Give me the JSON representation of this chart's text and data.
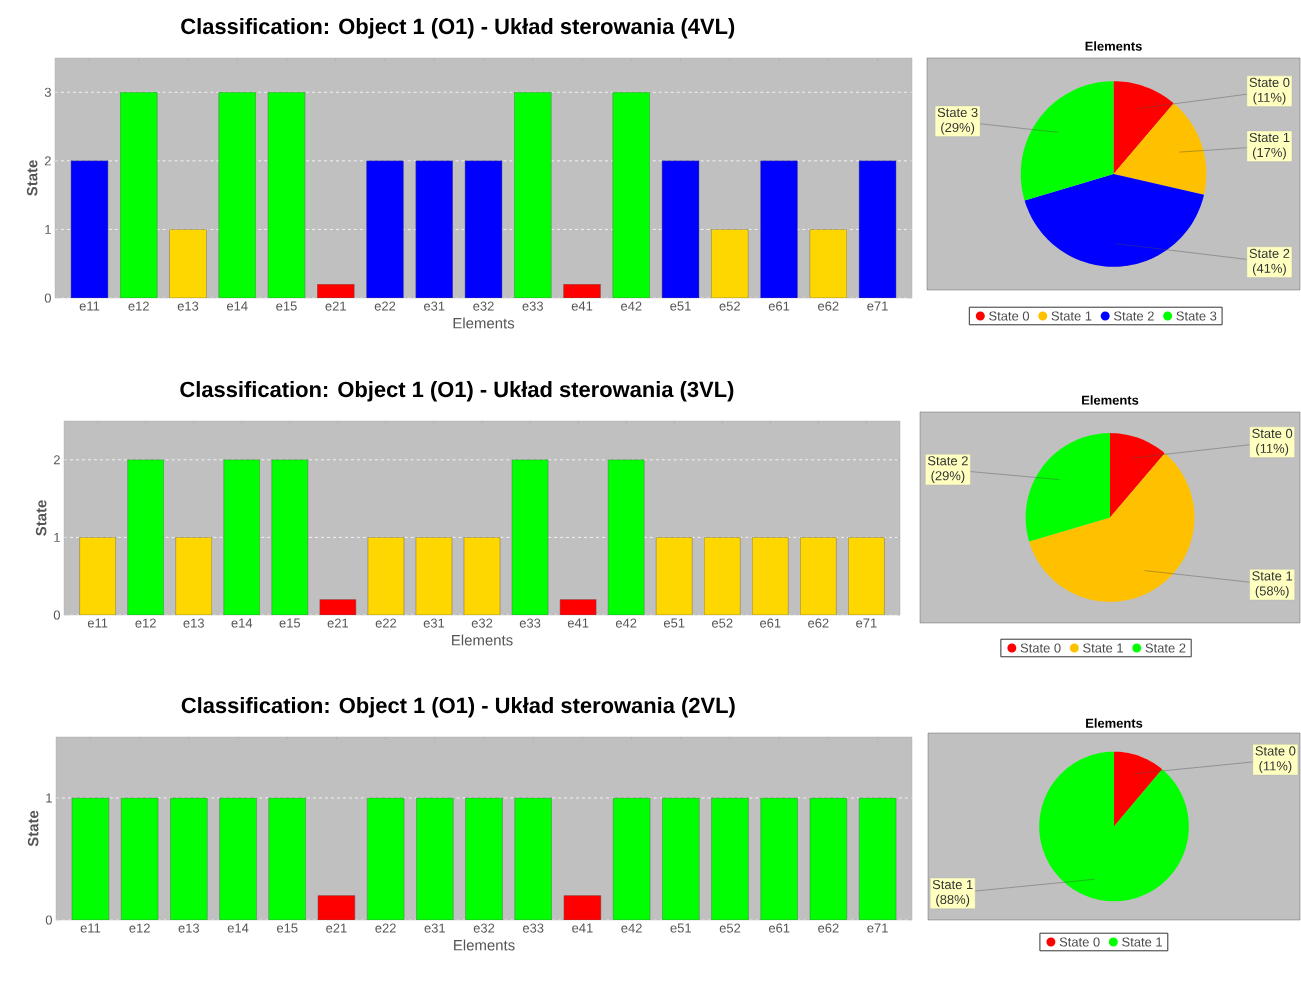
{
  "chart_data": [
    {
      "type": "bar",
      "title": "Classification: Object 1 (O1) - Układ sterowania (4VL)",
      "xlabel": "Elements",
      "ylabel": "State",
      "categories": [
        "e11",
        "e12",
        "e13",
        "e14",
        "e15",
        "e21",
        "e22",
        "e31",
        "e32",
        "e33",
        "e41",
        "e42",
        "e51",
        "e52",
        "e61",
        "e62",
        "e71"
      ],
      "values": [
        2,
        3,
        1,
        3,
        3,
        0.2,
        2,
        2,
        2,
        3,
        0.2,
        3,
        2,
        1,
        2,
        1,
        2
      ],
      "colors": [
        "#0000ff",
        "#00ff00",
        "#ffd700",
        "#00ff00",
        "#00ff00",
        "#ff0000",
        "#0000ff",
        "#0000ff",
        "#0000ff",
        "#00ff00",
        "#ff0000",
        "#00ff00",
        "#0000ff",
        "#ffd700",
        "#0000ff",
        "#ffd700",
        "#0000ff"
      ],
      "ylim": [
        0,
        3.5
      ],
      "yticks": [
        0,
        1,
        2,
        3
      ],
      "grid": "y"
    },
    {
      "type": "pie",
      "title": "Elements",
      "categories": [
        "State 0",
        "State 1",
        "State 2",
        "State 3"
      ],
      "values": [
        11,
        17,
        41,
        29
      ],
      "value_labels": [
        "(11%)",
        "(17%)",
        "(41%)",
        "(29%)"
      ],
      "colors": [
        "#ff0000",
        "#ffc000",
        "#0000ff",
        "#00ff00"
      ],
      "legend": "bottom"
    },
    {
      "type": "bar",
      "title": "Classification: Object 1 (O1) - Układ sterowania (3VL)",
      "xlabel": "Elements",
      "ylabel": "State",
      "categories": [
        "e11",
        "e12",
        "e13",
        "e14",
        "e15",
        "e21",
        "e22",
        "e31",
        "e32",
        "e33",
        "e41",
        "e42",
        "e51",
        "e52",
        "e61",
        "e62",
        "e71"
      ],
      "values": [
        1,
        2,
        1,
        2,
        2,
        0.2,
        1,
        1,
        1,
        2,
        0.2,
        2,
        1,
        1,
        1,
        1,
        1
      ],
      "colors": [
        "#ffd700",
        "#00ff00",
        "#ffd700",
        "#00ff00",
        "#00ff00",
        "#ff0000",
        "#ffd700",
        "#ffd700",
        "#ffd700",
        "#00ff00",
        "#ff0000",
        "#00ff00",
        "#ffd700",
        "#ffd700",
        "#ffd700",
        "#ffd700",
        "#ffd700"
      ],
      "ylim": [
        0,
        2.5
      ],
      "yticks": [
        0,
        1,
        2
      ],
      "grid": "y"
    },
    {
      "type": "pie",
      "title": "Elements",
      "categories": [
        "State 0",
        "State 1",
        "State 2"
      ],
      "values": [
        11,
        58,
        29
      ],
      "value_labels": [
        "(11%)",
        "(58%)",
        "(29%)"
      ],
      "colors": [
        "#ff0000",
        "#ffc000",
        "#00ff00"
      ],
      "legend": "bottom"
    },
    {
      "type": "bar",
      "title": "Classification: Object 1 (O1) - Układ sterowania (2VL)",
      "xlabel": "Elements",
      "ylabel": "State",
      "categories": [
        "e11",
        "e12",
        "e13",
        "e14",
        "e15",
        "e21",
        "e22",
        "e31",
        "e32",
        "e33",
        "e41",
        "e42",
        "e51",
        "e52",
        "e61",
        "e62",
        "e71"
      ],
      "values": [
        1,
        1,
        1,
        1,
        1,
        0.2,
        1,
        1,
        1,
        1,
        0.2,
        1,
        1,
        1,
        1,
        1,
        1
      ],
      "colors": [
        "#00ff00",
        "#00ff00",
        "#00ff00",
        "#00ff00",
        "#00ff00",
        "#ff0000",
        "#00ff00",
        "#00ff00",
        "#00ff00",
        "#00ff00",
        "#ff0000",
        "#00ff00",
        "#00ff00",
        "#00ff00",
        "#00ff00",
        "#00ff00",
        "#00ff00"
      ],
      "ylim": [
        0,
        1.5
      ],
      "yticks": [
        0,
        1
      ],
      "grid": "y"
    },
    {
      "type": "pie",
      "title": "Elements",
      "categories": [
        "State 0",
        "State 1"
      ],
      "values": [
        11,
        88
      ],
      "value_labels": [
        "(11%)",
        "(88%)"
      ],
      "colors": [
        "#ff0000",
        "#00ff00"
      ],
      "legend": "bottom"
    }
  ]
}
